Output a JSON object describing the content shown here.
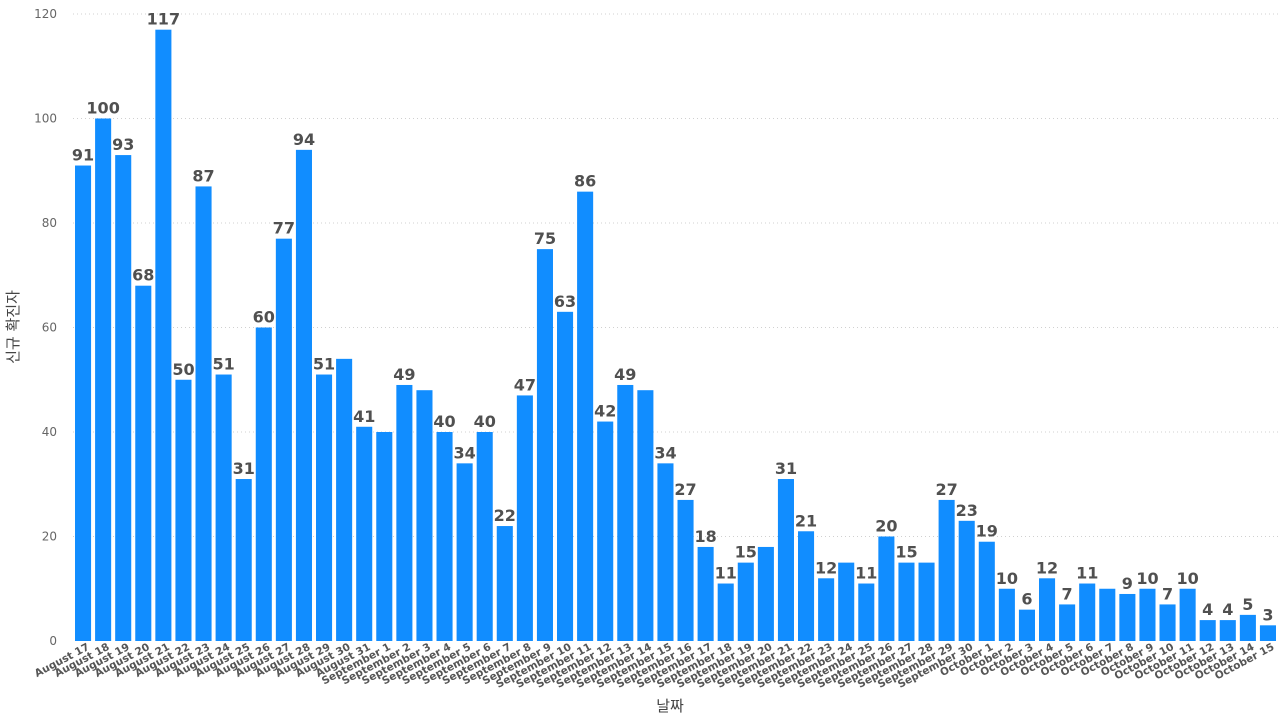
{
  "chart_data": {
    "type": "bar",
    "xlabel": "날짜",
    "ylabel": "신규 확진자",
    "ylim": [
      0,
      120
    ],
    "yticks": [
      0,
      20,
      40,
      60,
      80,
      100,
      120
    ],
    "grid": "horizontal-dotted",
    "colors": {
      "bar": "#118DFF",
      "grid": "#d0d0d0",
      "label": "#505050"
    },
    "categories": [
      "August 17",
      "August 18",
      "August 19",
      "August 20",
      "August 21",
      "August 22",
      "August 23",
      "August 24",
      "August 25",
      "August 26",
      "August 27",
      "August 28",
      "August 29",
      "August 30",
      "August 31",
      "September 1",
      "September 2",
      "September 3",
      "September 4",
      "September 5",
      "September 6",
      "September 7",
      "September 8",
      "September 9",
      "September 10",
      "September 11",
      "September 12",
      "September 13",
      "September 14",
      "September 15",
      "September 16",
      "September 17",
      "September 18",
      "September 19",
      "September 20",
      "September 21",
      "September 22",
      "September 23",
      "September 24",
      "September 25",
      "September 26",
      "September 27",
      "September 28",
      "September 29",
      "September 30",
      "October 1",
      "October 2",
      "October 3",
      "October 4",
      "October 5",
      "October 6",
      "October 7",
      "October 8",
      "October 9",
      "October 10",
      "October 11",
      "October 12",
      "October 13",
      "October 14",
      "October 15"
    ],
    "values": [
      91,
      100,
      93,
      68,
      117,
      50,
      87,
      51,
      31,
      60,
      77,
      94,
      51,
      54,
      41,
      40,
      49,
      48,
      40,
      34,
      40,
      22,
      47,
      75,
      63,
      86,
      42,
      49,
      48,
      34,
      27,
      18,
      11,
      15,
      18,
      31,
      21,
      12,
      15,
      11,
      20,
      15,
      15,
      27,
      23,
      19,
      10,
      6,
      12,
      7,
      11,
      10,
      9,
      10,
      7,
      10,
      4,
      4,
      5,
      3
    ],
    "labeled": [
      true,
      true,
      true,
      true,
      true,
      true,
      true,
      true,
      true,
      true,
      true,
      true,
      true,
      false,
      true,
      false,
      true,
      false,
      true,
      true,
      true,
      true,
      true,
      true,
      true,
      true,
      true,
      true,
      false,
      true,
      true,
      true,
      true,
      true,
      false,
      true,
      true,
      true,
      false,
      true,
      true,
      true,
      false,
      true,
      true,
      true,
      true,
      true,
      true,
      true,
      true,
      false,
      true,
      true,
      true,
      true,
      true,
      true,
      true,
      true
    ]
  }
}
